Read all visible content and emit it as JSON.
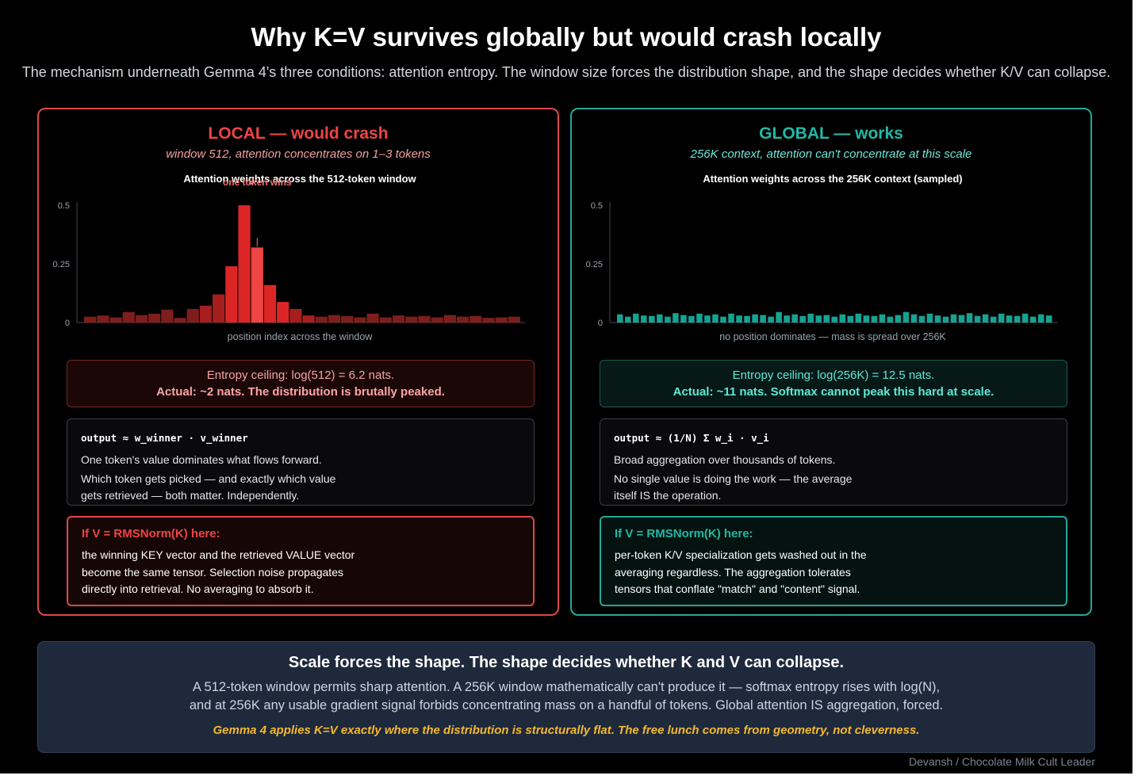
{
  "header": {
    "title": "Why K=V survives globally but would crash locally",
    "subtitle": "The mechanism underneath Gemma 4's three conditions: attention entropy. The window size forces the distribution shape, and the shape decides whether K/V can collapse."
  },
  "local": {
    "title": "LOCAL — would crash",
    "subtitle": "window 512, attention concentrates on 1–3 tokens",
    "entropy_line1": "Entropy ceiling: log(512) = 6.2 nats.",
    "entropy_line2": "Actual: ~2 nats. The distribution is brutally peaked.",
    "formula": "output ≈ w_winner · v_winner",
    "formula_text1": "One token's value dominates what flows forward.",
    "formula_text2": "Which token gets picked — and exactly which value",
    "formula_text3": "gets retrieved — both matter. Independently.",
    "ifv_heading": "If V = RMSNorm(K) here:",
    "ifv_text1": "the winning KEY vector and the retrieved VALUE vector",
    "ifv_text2": "become the same tensor. Selection noise propagates",
    "ifv_text3": "directly into retrieval. No averaging to absorb it."
  },
  "global": {
    "title": "GLOBAL — works",
    "subtitle": "256K context, attention can't concentrate at this scale",
    "entropy_line1": "Entropy ceiling: log(256K) = 12.5 nats.",
    "entropy_line2": "Actual: ~11 nats. Softmax cannot peak this hard at scale.",
    "formula": "output ≈ (1/N) Σ w_i · v_i",
    "formula_text1": "Broad aggregation over thousands of tokens.",
    "formula_text2": "No single value is doing the work — the average",
    "formula_text3": "itself IS the operation.",
    "ifv_heading": "If V = RMSNorm(K) here:",
    "ifv_text1": "per-token K/V specialization gets washed out in the",
    "ifv_text2": "averaging regardless. The aggregation tolerates",
    "ifv_text3": "tensors that conflate \"match\" and \"content\" signal."
  },
  "summary": {
    "heading": "Scale forces the shape. The shape decides whether K and V can collapse.",
    "line1": "A 512-token window permits sharp attention. A 256K window mathematically can't produce it — softmax entropy rises with log(N),",
    "line2": "and at 256K any usable gradient signal forbids concentrating mass on a handful of tokens. Global attention IS aggregation, forced.",
    "highlight": "Gemma 4 applies K=V exactly where the distribution is structurally flat. The free lunch comes from geometry, not cleverness."
  },
  "credit": "Devansh / Chocolate Milk Cult Leader",
  "colors": {
    "local_accent": "#ef4444",
    "global_accent": "#22b8a6",
    "highlight": "#f5b82e"
  },
  "chart_data": [
    {
      "type": "bar",
      "title": "Attention weights across the 512-token window",
      "xlabel": "position index across the window",
      "ylabel": "",
      "ylim": [
        0,
        0.5
      ],
      "yticks": [
        0,
        0.25,
        0.5
      ],
      "ytick_labels": [
        "0",
        "0.25",
        "0.5"
      ],
      "annotation": "one token wins",
      "peak_index": 13,
      "values": [
        0.025,
        0.03,
        0.022,
        0.045,
        0.032,
        0.038,
        0.055,
        0.02,
        0.058,
        0.072,
        0.12,
        0.24,
        0.5,
        0.32,
        0.16,
        0.088,
        0.058,
        0.03,
        0.025,
        0.032,
        0.028,
        0.022,
        0.038,
        0.022,
        0.03,
        0.025,
        0.028,
        0.022,
        0.032,
        0.025,
        0.028,
        0.02,
        0.022,
        0.025
      ]
    },
    {
      "type": "bar",
      "title": "Attention weights across the 256K context (sampled)",
      "xlabel": "no position dominates — mass is spread over 256K",
      "ylabel": "",
      "ylim": [
        0,
        0.5
      ],
      "yticks": [
        0,
        0.25,
        0.5
      ],
      "ytick_labels": [
        "0",
        "0.25",
        "0.5"
      ],
      "values": [
        0.035,
        0.025,
        0.038,
        0.03,
        0.028,
        0.035,
        0.025,
        0.04,
        0.032,
        0.028,
        0.038,
        0.03,
        0.035,
        0.025,
        0.038,
        0.03,
        0.028,
        0.035,
        0.032,
        0.025,
        0.045,
        0.03,
        0.035,
        0.028,
        0.038,
        0.03,
        0.032,
        0.025,
        0.035,
        0.028,
        0.038,
        0.03,
        0.028,
        0.035,
        0.025,
        0.032,
        0.045,
        0.035,
        0.028,
        0.038,
        0.03,
        0.025,
        0.035,
        0.032,
        0.04,
        0.028,
        0.035,
        0.025,
        0.038,
        0.03,
        0.028,
        0.038,
        0.025,
        0.035,
        0.03
      ]
    }
  ]
}
